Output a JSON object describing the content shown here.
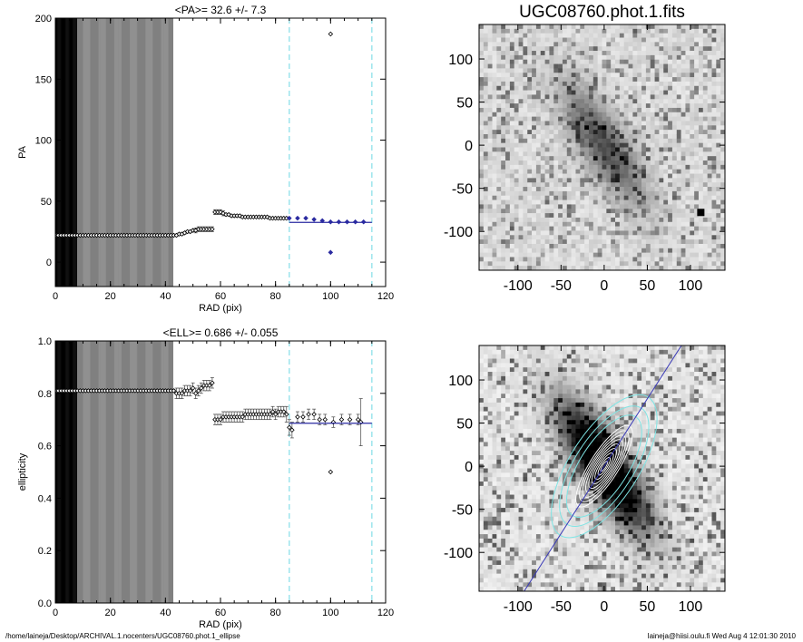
{
  "footer": {
    "path": "/home/laineja/Desktop/ARCHIVAL.1.nocenters/UGC08760.phot.1_ellipse",
    "stamp": "laineja@hiisi.oulu.fi  Wed Aug  4 12:01:30 2010"
  },
  "chart_data": [
    {
      "id": "pa",
      "type": "scatter",
      "title": "<PA>=  32.6 +/-   7.3",
      "xlabel": "RAD (pix)",
      "ylabel": "PA",
      "xlim": [
        0,
        120
      ],
      "ylim": [
        -20,
        200
      ],
      "xticks": [
        0,
        20,
        40,
        60,
        80,
        100,
        120
      ],
      "yticks": [
        0,
        50,
        100,
        150,
        200
      ],
      "vlines": [
        85,
        115
      ],
      "fit": {
        "x": [
          85,
          115
        ],
        "y": [
          32.6,
          32.6
        ]
      },
      "series": [
        {
          "role": "black",
          "x": [
            0,
            1,
            2,
            3,
            4,
            5,
            6,
            7,
            8,
            9,
            10,
            11,
            12,
            13,
            14,
            15,
            16,
            17,
            18,
            19,
            20,
            21,
            22,
            23,
            24,
            25,
            26,
            27,
            28,
            29,
            30,
            31,
            32,
            33,
            34,
            35,
            36,
            37,
            38,
            39,
            40,
            41,
            42,
            43,
            44,
            45,
            46,
            47,
            48,
            49,
            50,
            51,
            52,
            53,
            54,
            55,
            56,
            57,
            58,
            59,
            60,
            61,
            62,
            63,
            64,
            65,
            66,
            67,
            68,
            69,
            70,
            71,
            72,
            73,
            74,
            75,
            76,
            77,
            78,
            79,
            80,
            81,
            82,
            83,
            84
          ],
          "y": [
            22,
            22,
            22,
            22,
            22,
            22,
            22,
            22,
            22,
            22,
            22,
            22,
            22,
            22,
            22,
            22,
            22,
            22,
            22,
            22,
            22,
            22,
            22,
            22,
            22,
            22,
            22,
            22,
            22,
            22,
            22,
            22,
            22,
            22,
            22,
            22,
            22,
            22,
            22,
            22,
            22,
            22,
            22,
            22,
            22,
            23,
            23,
            24,
            25,
            25,
            26,
            26,
            27,
            27,
            27,
            27,
            27,
            27,
            41,
            41,
            41,
            40,
            39,
            39,
            38,
            38,
            38,
            38,
            37,
            37,
            37,
            37,
            37,
            37,
            37,
            37,
            37,
            37,
            36,
            36,
            36,
            36,
            36,
            36,
            36
          ],
          "err": [
            1,
            1,
            1,
            1,
            1,
            1,
            1,
            1,
            1,
            1,
            1,
            1,
            1,
            1,
            1,
            1,
            1,
            1,
            1,
            1,
            1,
            1,
            1,
            1,
            1,
            1,
            1,
            1,
            1,
            1,
            1,
            1,
            1,
            1,
            1,
            1,
            1,
            1,
            1,
            1,
            1,
            1,
            1,
            1,
            1,
            1,
            1,
            1,
            1,
            1,
            1,
            2,
            2,
            2,
            2,
            2,
            2,
            2,
            2,
            2,
            2,
            2,
            1,
            1,
            1,
            1,
            1,
            1,
            1,
            1,
            1,
            1,
            1,
            1,
            1,
            1,
            1,
            1,
            1,
            1,
            1,
            1,
            1,
            1,
            1
          ]
        },
        {
          "role": "blue",
          "x": [
            85,
            88,
            91,
            94,
            97,
            100,
            103,
            106,
            109,
            112
          ],
          "y": [
            36,
            36,
            36,
            35,
            34,
            33,
            33,
            33,
            33,
            33
          ]
        },
        {
          "role": "outlier",
          "x": [
            100
          ],
          "y": [
            187
          ]
        },
        {
          "role": "outlier-blue",
          "x": [
            100
          ],
          "y": [
            8
          ]
        }
      ]
    },
    {
      "id": "ell",
      "type": "scatter",
      "title": "<ELL>= 0.686 +/-  0.055",
      "xlabel": "RAD (pix)",
      "ylabel": "ellipticity",
      "xlim": [
        0,
        120
      ],
      "ylim": [
        0,
        1
      ],
      "xticks": [
        0,
        20,
        40,
        60,
        80,
        100,
        120
      ],
      "yticks": [
        0.0,
        0.2,
        0.4,
        0.6,
        0.8,
        1.0
      ],
      "vlines": [
        85,
        115
      ],
      "fit": {
        "x": [
          85,
          115
        ],
        "y": [
          0.686,
          0.686
        ]
      },
      "series": [
        {
          "role": "black",
          "x": [
            0,
            1,
            2,
            3,
            4,
            5,
            6,
            7,
            8,
            9,
            10,
            11,
            12,
            13,
            14,
            15,
            16,
            17,
            18,
            19,
            20,
            21,
            22,
            23,
            24,
            25,
            26,
            27,
            28,
            29,
            30,
            31,
            32,
            33,
            34,
            35,
            36,
            37,
            38,
            39,
            40,
            41,
            42,
            43,
            44,
            45,
            46,
            47,
            48,
            49,
            50,
            51,
            52,
            53,
            54,
            55,
            56,
            57,
            58,
            59,
            60,
            61,
            62,
            63,
            64,
            65,
            66,
            67,
            68,
            69,
            70,
            71,
            72,
            73,
            74,
            75,
            76,
            77,
            78,
            79,
            80,
            81,
            82,
            83,
            84,
            85,
            86,
            88,
            90,
            92,
            94,
            96,
            98,
            101,
            104,
            107,
            110
          ],
          "y": [
            0.81,
            0.81,
            0.81,
            0.81,
            0.81,
            0.81,
            0.81,
            0.81,
            0.81,
            0.81,
            0.81,
            0.81,
            0.81,
            0.81,
            0.81,
            0.81,
            0.81,
            0.81,
            0.81,
            0.81,
            0.81,
            0.81,
            0.81,
            0.81,
            0.81,
            0.81,
            0.81,
            0.81,
            0.81,
            0.81,
            0.81,
            0.81,
            0.81,
            0.81,
            0.81,
            0.81,
            0.81,
            0.81,
            0.81,
            0.81,
            0.81,
            0.81,
            0.81,
            0.81,
            0.8,
            0.8,
            0.8,
            0.81,
            0.81,
            0.81,
            0.82,
            0.8,
            0.81,
            0.82,
            0.83,
            0.83,
            0.83,
            0.84,
            0.7,
            0.7,
            0.7,
            0.71,
            0.71,
            0.71,
            0.71,
            0.71,
            0.71,
            0.71,
            0.71,
            0.72,
            0.72,
            0.72,
            0.72,
            0.72,
            0.72,
            0.72,
            0.72,
            0.72,
            0.72,
            0.73,
            0.72,
            0.73,
            0.73,
            0.73,
            0.72,
            0.67,
            0.66,
            0.71,
            0.71,
            0.72,
            0.72,
            0.7,
            0.7,
            0.69,
            0.7,
            0.7,
            0.7
          ],
          "err": [
            0.005,
            0.005,
            0.005,
            0.005,
            0.005,
            0.005,
            0.005,
            0.005,
            0.005,
            0.005,
            0.005,
            0.005,
            0.005,
            0.005,
            0.005,
            0.005,
            0.005,
            0.005,
            0.005,
            0.005,
            0.005,
            0.005,
            0.005,
            0.005,
            0.005,
            0.005,
            0.005,
            0.005,
            0.005,
            0.005,
            0.005,
            0.005,
            0.005,
            0.005,
            0.005,
            0.005,
            0.005,
            0.005,
            0.005,
            0.005,
            0.005,
            0.005,
            0.005,
            0.005,
            0.02,
            0.02,
            0.02,
            0.02,
            0.02,
            0.02,
            0.02,
            0.02,
            0.02,
            0.02,
            0.02,
            0.02,
            0.02,
            0.02,
            0.02,
            0.02,
            0.02,
            0.02,
            0.02,
            0.02,
            0.02,
            0.02,
            0.02,
            0.02,
            0.02,
            0.02,
            0.02,
            0.02,
            0.02,
            0.02,
            0.02,
            0.02,
            0.02,
            0.02,
            0.02,
            0.02,
            0.02,
            0.02,
            0.02,
            0.02,
            0.03,
            0.03,
            0.03,
            0.02,
            0.02,
            0.02,
            0.02,
            0.02,
            0.02,
            0.02,
            0.02,
            0.02,
            0.02
          ]
        },
        {
          "role": "outlier",
          "x": [
            100
          ],
          "y": [
            0.5
          ]
        },
        {
          "role": "bigerr",
          "x": [
            111
          ],
          "y": [
            0.69
          ],
          "err": [
            0.09
          ]
        }
      ]
    },
    {
      "id": "img1",
      "type": "heatmap",
      "title": "UGC08760.phot.1.fits",
      "xlim": [
        -145,
        140
      ],
      "ylim": [
        -145,
        140
      ],
      "xticks": [
        -100,
        -50,
        0,
        50,
        100
      ],
      "yticks": [
        -100,
        -50,
        0,
        50,
        100
      ],
      "tick_labels": [
        "-100",
        "-50",
        "0",
        "50",
        "100"
      ],
      "galaxy_pa_deg": 32.6,
      "colormap": "gray_inverted"
    },
    {
      "id": "img2",
      "type": "heatmap",
      "title": "",
      "xlim": [
        -145,
        140
      ],
      "ylim": [
        -145,
        140
      ],
      "xticks": [
        -100,
        -50,
        0,
        50,
        100
      ],
      "yticks": [
        -100,
        -50,
        0,
        50,
        100
      ],
      "tick_labels": [
        "-100",
        "-50",
        "0",
        "50",
        "100"
      ],
      "galaxy_pa_deg": 32.6,
      "overlay": "isophote ellipses with major-axis line",
      "colors": {
        "fit_line": "#3a3ab8",
        "outer_ellipse": "#7fe5e5",
        "inner_ellipse": "#ffffff"
      }
    }
  ],
  "colors": {
    "fit_line": "#2a2aa0",
    "dashed_line": "#8ee0ea",
    "blue_points": "#2a2aa0"
  }
}
